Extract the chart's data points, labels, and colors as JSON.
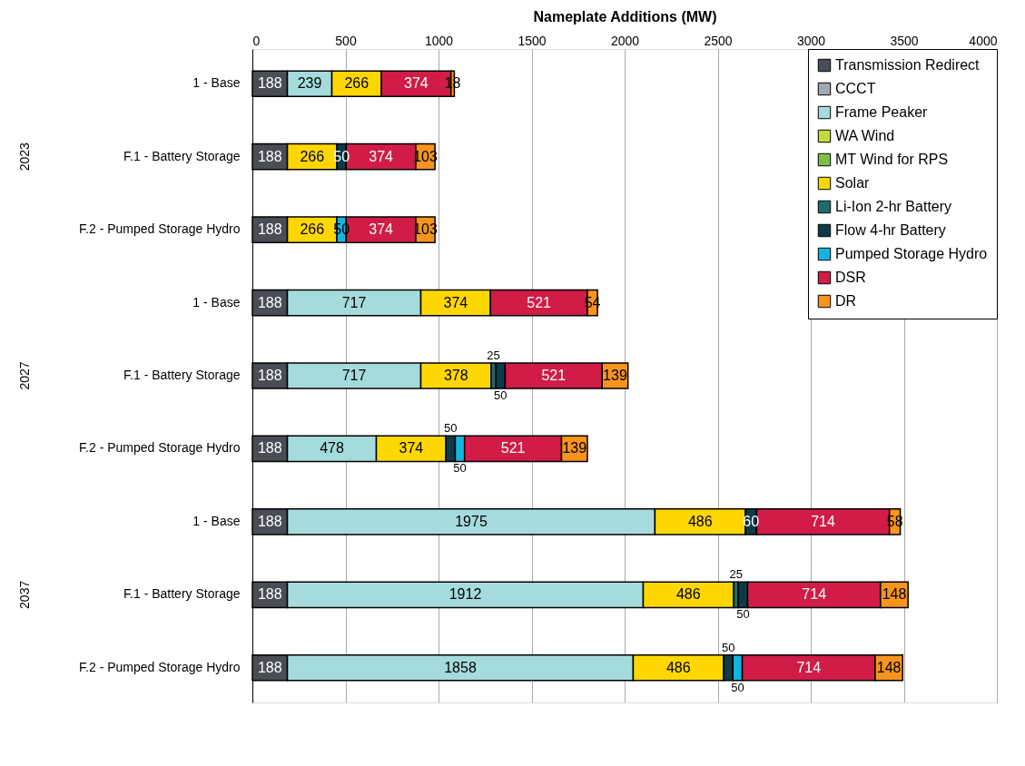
{
  "chart_data": {
    "type": "bar",
    "orientation": "horizontal",
    "stacked": true,
    "title": "Nameplate Additions (MW)",
    "categories": [
      "1 - Base",
      "F.1 - Battery Storage",
      "F.2 - Pumped Storage Hydro",
      "1 - Base",
      "F.1 - Battery Storage",
      "F.2 - Pumped Storage Hydro",
      "1 - Base",
      "F.1 - Battery Storage",
      "F.2 - Pumped Storage Hydro"
    ],
    "annotations": [
      "2023",
      "2027",
      "2037"
    ],
    "series": [
      {
        "name": "Transmission Redirect",
        "color": "#4a4d55",
        "values": [
          188,
          188,
          188,
          188,
          188,
          188,
          188,
          188,
          188
        ]
      },
      {
        "name": "CCCT",
        "color": "#a0a8b0",
        "values": [
          null,
          null,
          null,
          null,
          null,
          null,
          null,
          null,
          null
        ]
      },
      {
        "name": "Frame Peaker",
        "color": "#a6dbdd",
        "values": [
          239,
          null,
          null,
          717,
          717,
          478,
          1975,
          1912,
          1858
        ]
      },
      {
        "name": "WA Wind",
        "color": "#c8d93a",
        "values": [
          null,
          null,
          null,
          null,
          null,
          null,
          null,
          null,
          null
        ]
      },
      {
        "name": "MT Wind for RPS",
        "color": "#7cc142",
        "values": [
          null,
          null,
          null,
          null,
          null,
          null,
          null,
          null,
          null
        ]
      },
      {
        "name": "Solar",
        "color": "#ffd700",
        "values": [
          266,
          266,
          266,
          374,
          378,
          374,
          486,
          486,
          486
        ]
      },
      {
        "name": "Li-Ion 2-hr Battery",
        "color": "#1e6b70",
        "values": [
          null,
          null,
          null,
          null,
          25,
          null,
          null,
          25,
          null
        ]
      },
      {
        "name": "Flow 4-hr Battery",
        "color": "#0d3a48",
        "values": [
          null,
          50,
          null,
          null,
          50,
          50,
          60,
          50,
          50
        ]
      },
      {
        "name": "Pumped Storage Hydro",
        "color": "#14b4e0",
        "values": [
          null,
          null,
          50,
          null,
          null,
          50,
          null,
          null,
          50
        ]
      },
      {
        "name": "DSR",
        "color": "#d01c46",
        "values": [
          374,
          374,
          374,
          521,
          521,
          521,
          714,
          714,
          714
        ]
      },
      {
        "name": "DR",
        "color": "#f7941d",
        "values": [
          18,
          103,
          103,
          54,
          139,
          139,
          58,
          148,
          148
        ]
      }
    ],
    "xlim": [
      0,
      4000
    ],
    "xticks": [
      0,
      500,
      1000,
      1500,
      2000,
      2500,
      3000,
      3500,
      4000
    ],
    "grid": "x",
    "legend": "top right",
    "data_labels": true
  }
}
